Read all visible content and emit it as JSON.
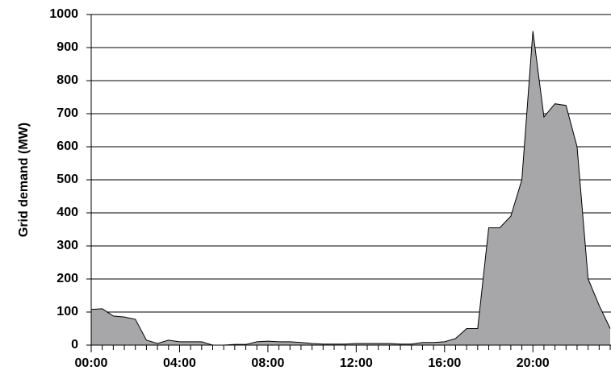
{
  "chart_data": {
    "type": "area",
    "y_label": "Grid demand (MW)",
    "categories": [
      "00:00",
      null,
      null,
      null,
      null,
      null,
      null,
      null,
      "04:00",
      null,
      null,
      null,
      null,
      null,
      null,
      null,
      "08:00",
      null,
      null,
      null,
      null,
      null,
      null,
      null,
      "12:00",
      null,
      null,
      null,
      null,
      null,
      null,
      null,
      "16:00",
      null,
      null,
      null,
      null,
      null,
      null,
      null,
      "20:00",
      null,
      null,
      null,
      null,
      null,
      null,
      null
    ],
    "values": [
      108,
      110,
      88,
      85,
      78,
      15,
      5,
      15,
      10,
      10,
      10,
      0,
      0,
      2,
      2,
      10,
      12,
      10,
      10,
      8,
      5,
      3,
      3,
      3,
      5,
      5,
      5,
      5,
      3,
      3,
      8,
      8,
      10,
      20,
      50,
      50,
      355,
      355,
      390,
      500,
      950,
      690,
      730,
      725,
      600,
      200,
      120,
      50
    ],
    "color": "#a7a7aa",
    "ylim": [
      0,
      1000
    ],
    "yticks": [
      0,
      100,
      200,
      300,
      400,
      500,
      600,
      700,
      800,
      900,
      1000
    ],
    "grid": true
  }
}
